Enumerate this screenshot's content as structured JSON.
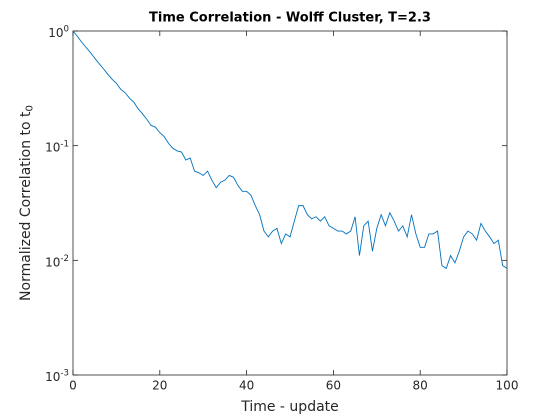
{
  "chart_data": {
    "type": "line",
    "title": "Time Correlation - Wolff Cluster, T=2.3",
    "xlabel": "Time - update",
    "ylabel": "Normalized Correlation to t_0",
    "yscale": "log",
    "xlim": [
      0,
      100
    ],
    "ylim": [
      0.001,
      1
    ],
    "xticks": [
      0,
      20,
      40,
      60,
      80,
      100
    ],
    "yticks": [
      {
        "value": 0.001,
        "label": "10^-3"
      },
      {
        "value": 0.01,
        "label": "10^-2"
      },
      {
        "value": 0.1,
        "label": "10^-1"
      },
      {
        "value": 1,
        "label": "10^0"
      }
    ],
    "x": [
      0,
      1,
      2,
      3,
      4,
      5,
      6,
      7,
      8,
      9,
      10,
      11,
      12,
      13,
      14,
      15,
      16,
      17,
      18,
      19,
      20,
      21,
      22,
      23,
      24,
      25,
      26,
      27,
      28,
      29,
      30,
      31,
      32,
      33,
      34,
      35,
      36,
      37,
      38,
      39,
      40,
      41,
      42,
      43,
      44,
      45,
      46,
      47,
      48,
      49,
      50,
      51,
      52,
      53,
      54,
      55,
      56,
      57,
      58,
      59,
      60,
      61,
      62,
      63,
      64,
      65,
      66,
      67,
      68,
      69,
      70,
      71,
      72,
      73,
      74,
      75,
      76,
      77,
      78,
      79,
      80,
      81,
      82,
      83,
      84,
      85,
      86,
      87,
      88,
      89,
      90,
      91,
      92,
      93,
      94,
      95,
      96,
      97,
      98,
      99,
      100
    ],
    "series": [
      {
        "color": "#0072bd",
        "values": [
          1.0,
          0.9,
          0.8,
          0.72,
          0.65,
          0.58,
          0.52,
          0.47,
          0.42,
          0.38,
          0.35,
          0.31,
          0.29,
          0.26,
          0.24,
          0.21,
          0.19,
          0.17,
          0.15,
          0.145,
          0.13,
          0.12,
          0.105,
          0.095,
          0.09,
          0.088,
          0.075,
          0.078,
          0.06,
          0.058,
          0.055,
          0.06,
          0.05,
          0.043,
          0.048,
          0.05,
          0.055,
          0.053,
          0.045,
          0.04,
          0.04,
          0.037,
          0.03,
          0.025,
          0.018,
          0.016,
          0.018,
          0.019,
          0.014,
          0.017,
          0.016,
          0.022,
          0.03,
          0.03,
          0.025,
          0.023,
          0.024,
          0.022,
          0.024,
          0.02,
          0.019,
          0.018,
          0.018,
          0.017,
          0.018,
          0.024,
          0.011,
          0.02,
          0.022,
          0.012,
          0.019,
          0.025,
          0.02,
          0.026,
          0.022,
          0.018,
          0.02,
          0.016,
          0.025,
          0.017,
          0.013,
          0.013,
          0.017,
          0.017,
          0.018,
          0.009,
          0.0085,
          0.011,
          0.0095,
          0.012,
          0.016,
          0.018,
          0.017,
          0.015,
          0.021,
          0.018,
          0.016,
          0.014,
          0.015,
          0.009,
          0.0085
        ]
      }
    ]
  }
}
